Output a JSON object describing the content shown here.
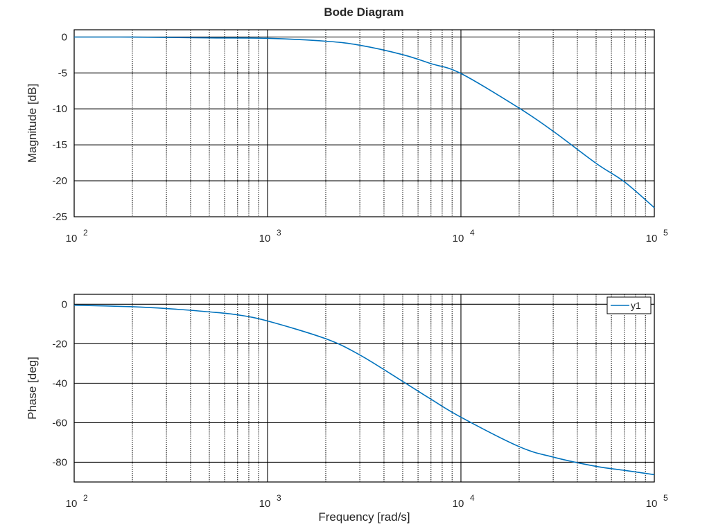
{
  "chart_data": [
    {
      "type": "line",
      "title": "Bode Diagram",
      "xlabel": "",
      "ylabel": "Magnitude [dB]",
      "xscale": "log",
      "xlim": [
        100,
        100000
      ],
      "ylim": [
        -25,
        1
      ],
      "x_ticks": [
        {
          "base": "10",
          "exp": "2"
        },
        {
          "base": "10",
          "exp": "3"
        },
        {
          "base": "10",
          "exp": "4"
        },
        {
          "base": "10",
          "exp": "5"
        }
      ],
      "y_ticks": [
        "0",
        "-5",
        "-10",
        "-15",
        "-20",
        "-25"
      ],
      "y_tick_values": [
        0,
        -5,
        -10,
        -15,
        -20,
        -25
      ],
      "grid": true,
      "series": [
        {
          "color": "#0072bd",
          "x": [
            100,
            200,
            500,
            1000,
            2000,
            3000,
            5000,
            7000,
            10000,
            20000,
            30000,
            50000,
            70000,
            100000
          ],
          "y": [
            -0.01,
            -0.02,
            -0.13,
            -0.19,
            -0.59,
            -1.15,
            -2.46,
            -3.71,
            -5.08,
            -9.89,
            -13.11,
            -17.57,
            -20.14,
            -23.74
          ]
        }
      ]
    },
    {
      "type": "line",
      "title": "",
      "xlabel": "Frequency [rad/s]",
      "ylabel": "Phase [deg]",
      "xscale": "log",
      "xlim": [
        100,
        100000
      ],
      "ylim": [
        -90,
        5
      ],
      "x_ticks": [
        {
          "base": "10",
          "exp": "2"
        },
        {
          "base": "10",
          "exp": "3"
        },
        {
          "base": "10",
          "exp": "4"
        },
        {
          "base": "10",
          "exp": "5"
        }
      ],
      "y_ticks": [
        "0",
        "-20",
        "-40",
        "-60",
        "-80"
      ],
      "y_tick_values": [
        0,
        -20,
        -40,
        -60,
        -80
      ],
      "grid": true,
      "legend": {
        "position": "top-right",
        "entries": [
          "y1"
        ]
      },
      "series": [
        {
          "name": "y1",
          "color": "#0072bd",
          "x": [
            100,
            200,
            300,
            500,
            700,
            1000,
            2000,
            3000,
            5000,
            7000,
            10000,
            20000,
            30000,
            50000,
            70000,
            100000
          ],
          "y": [
            -0.5,
            -1.3,
            -2.2,
            -3.9,
            -5.4,
            -8.5,
            -17.5,
            -25.7,
            -39.1,
            -48.1,
            -57.2,
            -72.1,
            -77.4,
            -82.1,
            -84.1,
            -86.3
          ]
        }
      ]
    }
  ]
}
